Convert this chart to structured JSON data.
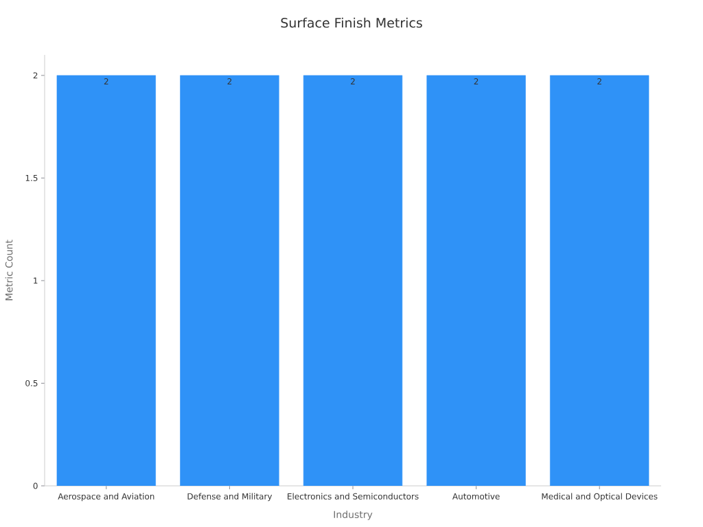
{
  "chart_data": {
    "type": "bar",
    "title": "Surface Finish Metrics",
    "xlabel": "Industry",
    "ylabel": "Metric Count",
    "categories": [
      "Aerospace and Aviation",
      "Defense and Military",
      "Electronics and Semiconductors",
      "Automotive",
      "Medical and Optical Devices"
    ],
    "values": [
      2,
      2,
      2,
      2,
      2
    ],
    "color": "#2f92f7",
    "ylim": [
      0,
      2.1
    ],
    "yticks": [
      0,
      0.5,
      1,
      1.5,
      2
    ],
    "data_labels": true
  }
}
